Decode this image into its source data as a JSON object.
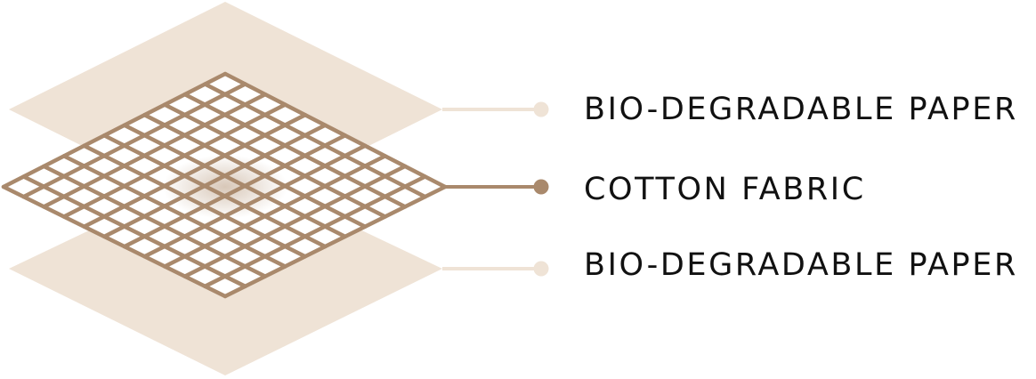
{
  "layers": [
    {
      "label": "BIO-DEGRADABLE PAPER",
      "material": "paper"
    },
    {
      "label": "COTTON FABRIC",
      "material": "fabric"
    },
    {
      "label": "BIO-DEGRADABLE PAPER",
      "material": "paper"
    }
  ],
  "colors": {
    "paper": "#efe3d6",
    "fabric": "#a9896c",
    "fabric_center_shade": "#c9ad93",
    "text": "#111111",
    "background": "#ffffff"
  }
}
